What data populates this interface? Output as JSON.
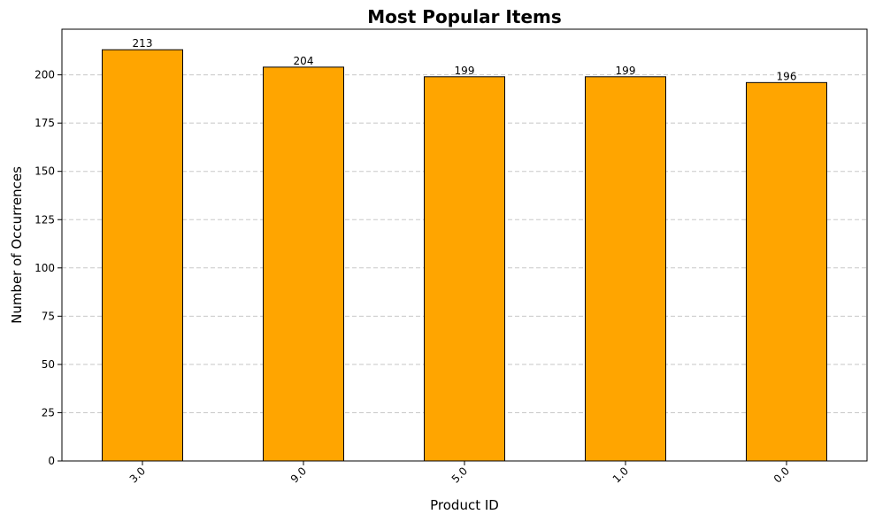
{
  "chart_data": {
    "type": "bar",
    "title": "Most Popular Items",
    "xlabel": "Product ID",
    "ylabel": "Number of Occurrences",
    "categories": [
      "3.0",
      "9.0",
      "5.0",
      "1.0",
      "0.0"
    ],
    "values": [
      213,
      204,
      199,
      199,
      196
    ],
    "data_labels": [
      "213",
      "204",
      "199",
      "199",
      "196"
    ],
    "yticks": [
      0,
      25,
      50,
      75,
      100,
      125,
      150,
      175,
      200
    ],
    "ylim": [
      0,
      223.65
    ],
    "grid": "y-dashed",
    "xtick_rotation": 45,
    "bar_color": "#FFA500",
    "bar_edge_color": "#000000",
    "grid_color": "#C8C8C8"
  }
}
